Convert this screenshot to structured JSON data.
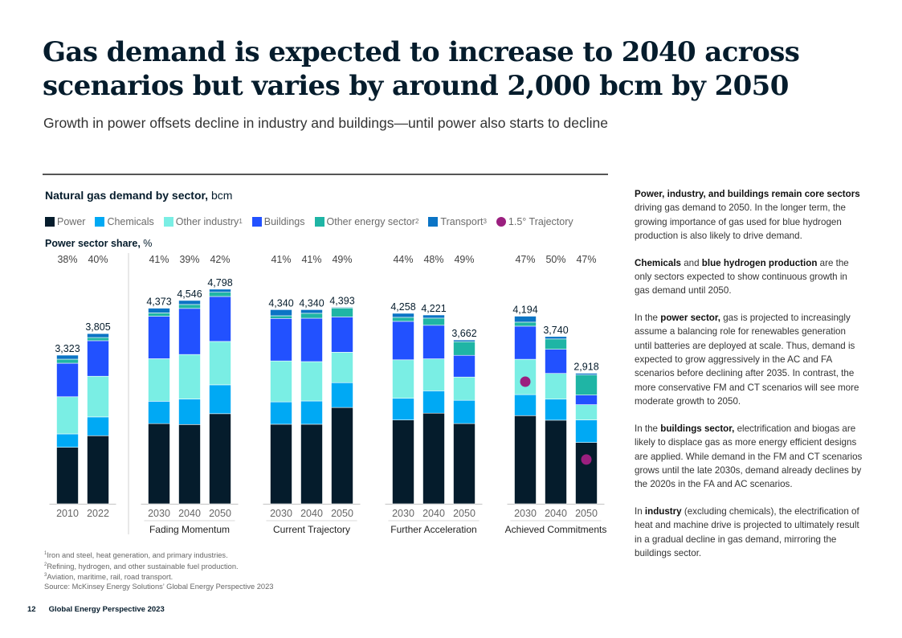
{
  "page": {
    "title": "Gas demand is expected to increase to 2040 across scenarios but varies by around 2,000 bcm by 2050",
    "subtitle": "Growth in power offsets decline in industry and buildings—until power also starts to decline",
    "page_number": "12",
    "publication": "Global Energy Perspective 2023"
  },
  "chart_header": {
    "title_bold": "Natural gas demand by sector,",
    "title_unit": " bcm",
    "share_label_bold": "Power sector share,",
    "share_label_unit": " %"
  },
  "legend": [
    {
      "key": "power",
      "label": "Power",
      "sup": "",
      "color": "#051C2C",
      "shape": "square"
    },
    {
      "key": "chemicals",
      "label": "Chemicals",
      "sup": "",
      "color": "#00A9F4",
      "shape": "square"
    },
    {
      "key": "other_industry",
      "label": "Other industry",
      "sup": "1",
      "color": "#7AEEE4",
      "shape": "square"
    },
    {
      "key": "buildings",
      "label": "Buildings",
      "sup": "",
      "color": "#2251FF",
      "shape": "square"
    },
    {
      "key": "other_energy",
      "label": "Other energy sector",
      "sup": "2",
      "color": "#1FB5A5",
      "shape": "square"
    },
    {
      "key": "transport",
      "label": "Transport",
      "sup": "3",
      "color": "#0B74C5",
      "shape": "square"
    },
    {
      "key": "trajectory_15",
      "label": "1.5° Trajectory",
      "sup": "",
      "color": "#9B1F7F",
      "shape": "circle"
    }
  ],
  "chart_data": {
    "type": "bar",
    "stacked": true,
    "title": "Natural gas demand by sector, bcm",
    "ylabel": "bcm",
    "ylim": [
      0,
      5000
    ],
    "grid": false,
    "legend_position": "top",
    "segment_order": [
      "power",
      "chemicals",
      "other_industry",
      "buildings",
      "other_energy",
      "transport"
    ],
    "groups": [
      {
        "name": "",
        "bars": [
          {
            "year": "2010",
            "total": "3,323",
            "power_share": "38%",
            "values": {
              "power": 1263,
              "chemicals": 300,
              "other_industry": 830,
              "buildings": 750,
              "other_energy": 90,
              "transport": 90
            }
          },
          {
            "year": "2022",
            "total": "3,805",
            "power_share": "40%",
            "values": {
              "power": 1522,
              "chemicals": 420,
              "other_industry": 910,
              "buildings": 795,
              "other_energy": 70,
              "transport": 88
            }
          }
        ]
      },
      {
        "name": "Fading Momentum",
        "bars": [
          {
            "year": "2030",
            "total": "4,373",
            "power_share": "41%",
            "values": {
              "power": 1793,
              "chemicals": 500,
              "other_industry": 950,
              "buildings": 950,
              "other_energy": 75,
              "transport": 105
            }
          },
          {
            "year": "2040",
            "total": "4,546",
            "power_share": "39%",
            "values": {
              "power": 1773,
              "chemicals": 570,
              "other_industry": 995,
              "buildings": 1030,
              "other_energy": 88,
              "transport": 90
            }
          },
          {
            "year": "2050",
            "total": "4,798",
            "power_share": "42%",
            "values": {
              "power": 2015,
              "chemicals": 645,
              "other_industry": 970,
              "buildings": 1005,
              "other_energy": 95,
              "transport": 68
            }
          }
        ]
      },
      {
        "name": "Current Trajectory",
        "bars": [
          {
            "year": "2030",
            "total": "4,340",
            "power_share": "41%",
            "values": {
              "power": 1779,
              "chemicals": 500,
              "other_industry": 915,
              "buildings": 950,
              "other_energy": 60,
              "transport": 136
            }
          },
          {
            "year": "2040",
            "total": "4,340",
            "power_share": "41%",
            "values": {
              "power": 1779,
              "chemicals": 520,
              "other_industry": 880,
              "buildings": 970,
              "other_energy": 110,
              "transport": 81
            }
          },
          {
            "year": "2050",
            "total": "4,393",
            "power_share": "49%",
            "values": {
              "power": 2153,
              "chemicals": 555,
              "other_industry": 680,
              "buildings": 790,
              "other_energy": 200,
              "transport": 15
            }
          }
        ]
      },
      {
        "name": "Further Acceleration",
        "bars": [
          {
            "year": "2030",
            "total": "4,258",
            "power_share": "44%",
            "values": {
              "power": 1874,
              "chemicals": 485,
              "other_industry": 860,
              "buildings": 860,
              "other_energy": 90,
              "transport": 89
            }
          },
          {
            "year": "2040",
            "total": "4,221",
            "power_share": "48%",
            "values": {
              "power": 2026,
              "chemicals": 500,
              "other_industry": 715,
              "buildings": 750,
              "other_energy": 160,
              "transport": 70
            }
          },
          {
            "year": "2050",
            "total": "3,662",
            "power_share": "49%",
            "values": {
              "power": 1794,
              "chemicals": 520,
              "other_industry": 520,
              "buildings": 485,
              "other_energy": 305,
              "transport": 38
            }
          }
        ]
      },
      {
        "name": "Achieved Commitments",
        "bars": [
          {
            "year": "2030",
            "total": "4,194",
            "power_share": "47%",
            "trajectory_15": 2730,
            "values": {
              "power": 1971,
              "chemicals": 470,
              "other_industry": 790,
              "buildings": 740,
              "other_energy": 90,
              "transport": 133
            }
          },
          {
            "year": "2040",
            "total": "3,740",
            "power_share": "50%",
            "values": {
              "power": 1870,
              "chemicals": 470,
              "other_industry": 575,
              "buildings": 540,
              "other_energy": 230,
              "transport": 55
            }
          },
          {
            "year": "2050",
            "total": "2,918",
            "power_share": "47%",
            "trajectory_15": 990,
            "values": {
              "power": 1371,
              "chemicals": 505,
              "other_industry": 340,
              "buildings": 215,
              "other_energy": 450,
              "transport": 37
            }
          }
        ]
      }
    ]
  },
  "commentary": [
    {
      "parts": [
        {
          "b": "Power, industry, and buildings remain core sectors"
        },
        {
          "t": " driving gas demand to 2050. In the longer term, the growing importance of gas used for blue hydrogen production is also likely to drive demand."
        }
      ]
    },
    {
      "parts": [
        {
          "b": "Chemicals"
        },
        {
          "t": " and "
        },
        {
          "b": "blue hydrogen production"
        },
        {
          "t": " are the only sectors expected to show continuous growth in gas demand until 2050."
        }
      ]
    },
    {
      "parts": [
        {
          "t": "In the "
        },
        {
          "b": "power sector,"
        },
        {
          "t": " gas is projected to increasingly assume a balancing role for renewables generation until batteries are deployed at scale. Thus, demand is expected to grow aggressively in the AC and FA scenarios before declining after 2035. In contrast, the more conservative FM and CT scenarios will see more moderate growth to 2050."
        }
      ]
    },
    {
      "parts": [
        {
          "t": "In the "
        },
        {
          "b": "buildings sector,"
        },
        {
          "t": " electrification and biogas are likely to displace gas as more energy efficient designs are applied. While demand in the FM and CT scenarios grows until the late 2030s, demand already declines by the 2020s in the FA and AC scenarios."
        }
      ]
    },
    {
      "parts": [
        {
          "t": "In "
        },
        {
          "b": "industry"
        },
        {
          "t": " (excluding chemicals), the electrification of heat and machine drive is projected to ultimately result in a gradual decline in gas demand, mirroring the buildings sector."
        }
      ]
    }
  ],
  "footnotes": [
    {
      "sup": "1",
      "text": "Iron and steel, heat generation, and primary industries."
    },
    {
      "sup": "2",
      "text": "Refining, hydrogen, and other sustainable fuel production."
    },
    {
      "sup": "3",
      "text": "Aviation, maritime, rail, road transport."
    },
    {
      "sup": "",
      "text": " Source: McKinsey Energy Solutions’ Global Energy Perspective 2023"
    }
  ]
}
